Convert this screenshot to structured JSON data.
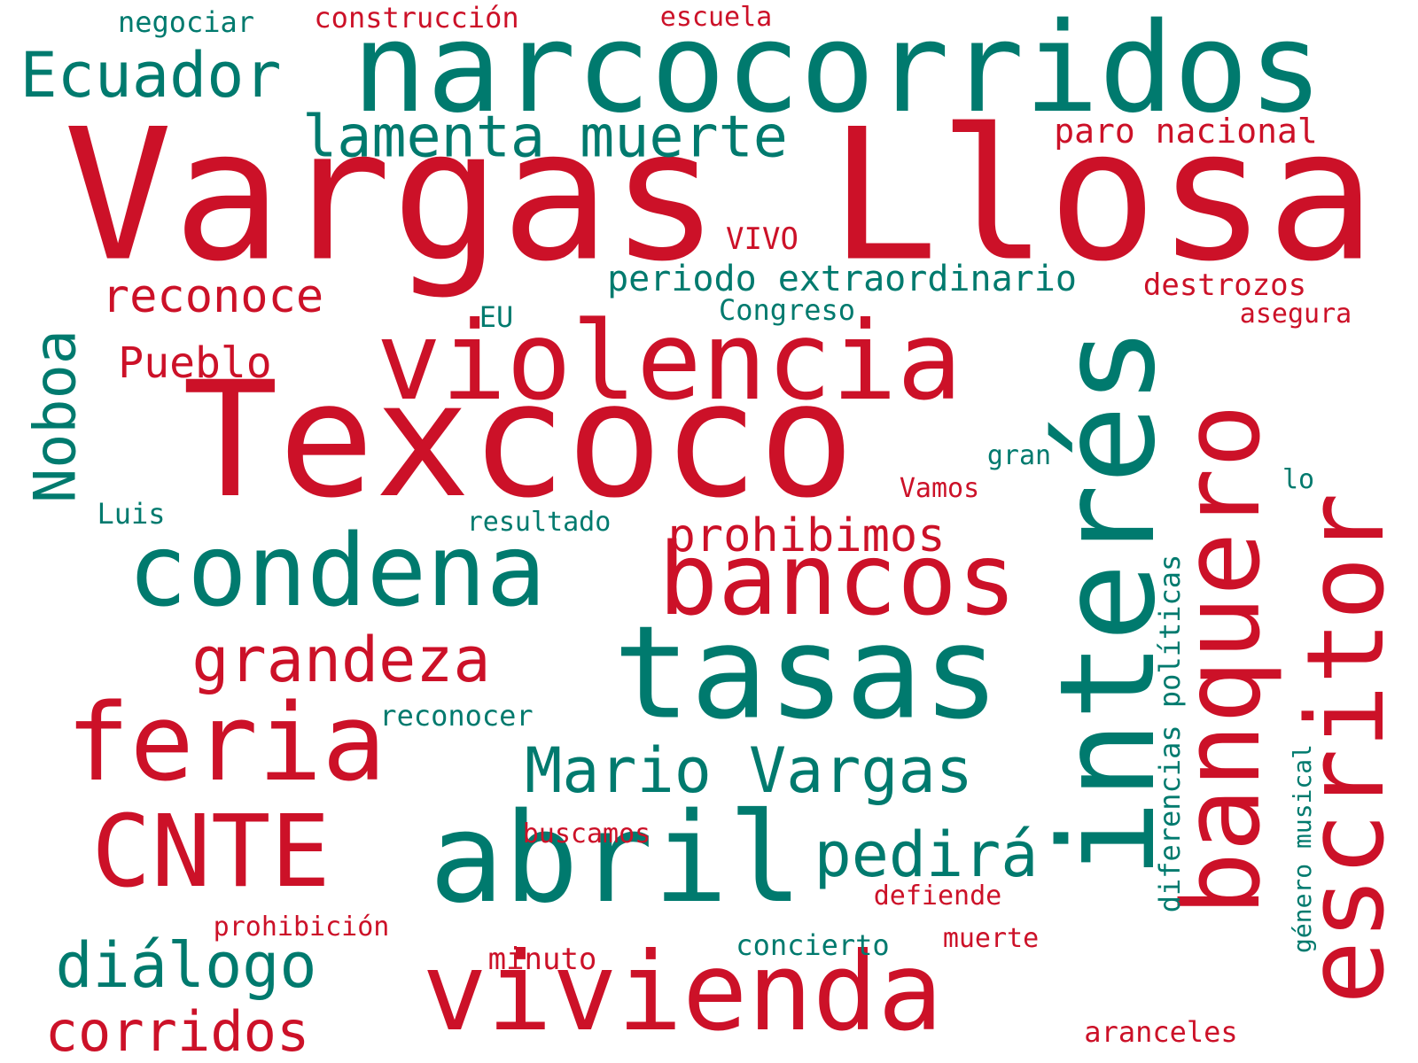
{
  "colors": {
    "red": "#cc1128",
    "green": "#007a6e",
    "background": "#ffffff"
  },
  "words": [
    {
      "text": "Vargas Llosa",
      "color": "red"
    },
    {
      "text": "narcocorridos",
      "color": "green"
    },
    {
      "text": "Texcoco",
      "color": "red"
    },
    {
      "text": "violencia",
      "color": "red"
    },
    {
      "text": "interés",
      "color": "green"
    },
    {
      "text": "condena",
      "color": "green"
    },
    {
      "text": "bancos",
      "color": "red"
    },
    {
      "text": "tasas",
      "color": "green"
    },
    {
      "text": "banquero",
      "color": "red"
    },
    {
      "text": "escritor",
      "color": "red"
    },
    {
      "text": "feria",
      "color": "red"
    },
    {
      "text": "abril",
      "color": "green"
    },
    {
      "text": "CNTE",
      "color": "red"
    },
    {
      "text": "vivienda",
      "color": "red"
    },
    {
      "text": "Ecuador",
      "color": "green"
    },
    {
      "text": "lamenta muerte",
      "color": "green"
    },
    {
      "text": "Mario Vargas",
      "color": "green"
    },
    {
      "text": "grandeza",
      "color": "red"
    },
    {
      "text": "pedirá",
      "color": "green"
    },
    {
      "text": "diálogo",
      "color": "green"
    },
    {
      "text": "corridos",
      "color": "red"
    },
    {
      "text": "Noboa",
      "color": "green"
    },
    {
      "text": "reconoce",
      "color": "red"
    },
    {
      "text": "prohibimos",
      "color": "red"
    },
    {
      "text": "Pueblo",
      "color": "red"
    },
    {
      "text": "periodo extraordinario",
      "color": "green"
    },
    {
      "text": "paro nacional",
      "color": "red"
    },
    {
      "text": "destrozos",
      "color": "red"
    },
    {
      "text": "construcción",
      "color": "red"
    },
    {
      "text": "negociar",
      "color": "green"
    },
    {
      "text": "escuela",
      "color": "red"
    },
    {
      "text": "Congreso",
      "color": "green"
    },
    {
      "text": "VIVO",
      "color": "red"
    },
    {
      "text": "EU",
      "color": "green"
    },
    {
      "text": "asegura",
      "color": "red"
    },
    {
      "text": "gran",
      "color": "green"
    },
    {
      "text": "Vamos",
      "color": "red"
    },
    {
      "text": "lo",
      "color": "green"
    },
    {
      "text": "Luis",
      "color": "green"
    },
    {
      "text": "resultado",
      "color": "green"
    },
    {
      "text": "reconocer",
      "color": "green"
    },
    {
      "text": "buscamos",
      "color": "red"
    },
    {
      "text": "defiende",
      "color": "red"
    },
    {
      "text": "prohibición",
      "color": "red"
    },
    {
      "text": "concierto",
      "color": "green"
    },
    {
      "text": "muerte",
      "color": "red"
    },
    {
      "text": "minuto",
      "color": "red"
    },
    {
      "text": "aranceles",
      "color": "red"
    },
    {
      "text": "diferencias políticas",
      "color": "green"
    },
    {
      "text": "género musical",
      "color": "green"
    }
  ]
}
